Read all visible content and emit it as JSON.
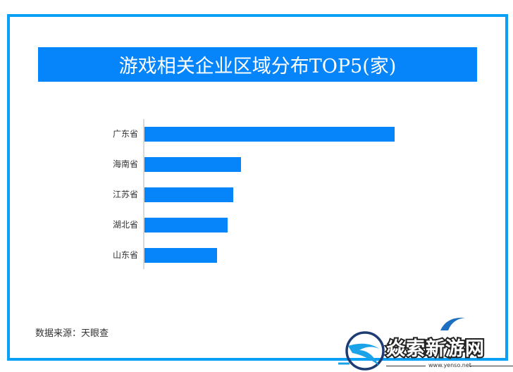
{
  "chart_data": {
    "type": "bar",
    "orientation": "horizontal",
    "title": "游戏相关企业区域分布TOP5(家)",
    "categories": [
      "广东省",
      "海南省",
      "江苏省",
      "湖北省",
      "山东省"
    ],
    "values": [
      355,
      137,
      126,
      118,
      103
    ],
    "values_note": "No axis values or data labels shown; values are relative bar lengths in px",
    "xlabel": "",
    "ylabel": "",
    "grid": false,
    "legend": null,
    "bar_color": "#0685fb"
  },
  "title": "游戏相关企业区域分布TOP5(家)",
  "source": "数据来源：天眼查",
  "watermark": {
    "name": "焱索新游网",
    "url": "www.yensо.net"
  },
  "colors": {
    "frame": "#0aa0f5",
    "title_bg": "#0685fb",
    "bar": "#0685fb",
    "axis": "#d9d9d9"
  }
}
